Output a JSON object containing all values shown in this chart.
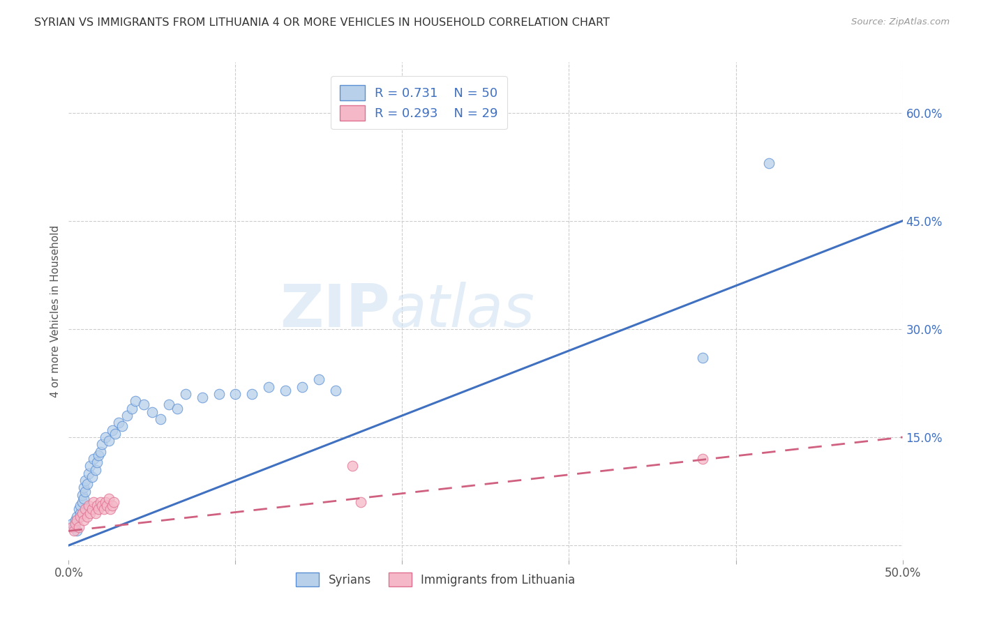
{
  "title": "SYRIAN VS IMMIGRANTS FROM LITHUANIA 4 OR MORE VEHICLES IN HOUSEHOLD CORRELATION CHART",
  "source": "Source: ZipAtlas.com",
  "ylabel": "4 or more Vehicles in Household",
  "xlim": [
    0.0,
    0.5
  ],
  "ylim": [
    -0.02,
    0.67
  ],
  "xtick_positions": [
    0.0,
    0.1,
    0.2,
    0.3,
    0.4,
    0.5
  ],
  "xtick_labels": [
    "0.0%",
    "",
    "",
    "",
    "",
    "50.0%"
  ],
  "ytick_positions": [
    0.0,
    0.15,
    0.3,
    0.45,
    0.6
  ],
  "ytick_labels": [
    "",
    "15.0%",
    "30.0%",
    "45.0%",
    "60.0%"
  ],
  "blue_fill": "#b8d0ea",
  "blue_edge": "#5b8fd4",
  "pink_fill": "#f4b8c8",
  "pink_edge": "#e07090",
  "blue_line": "#4070c0",
  "pink_line": "#d06080",
  "grid_color": "#cccccc",
  "bg_color": "#ffffff",
  "legend_r1": "R = 0.731",
  "legend_n1": "N = 50",
  "legend_r2": "R = 0.293",
  "legend_n2": "N = 29",
  "legend_text_color": "#4070c0",
  "title_color": "#333333",
  "source_color": "#999999",
  "axis_label_color": "#555555",
  "tick_label_color_right": "#4070c0",
  "syrians_x": [
    0.002,
    0.003,
    0.004,
    0.005,
    0.005,
    0.006,
    0.007,
    0.007,
    0.008,
    0.008,
    0.009,
    0.009,
    0.01,
    0.01,
    0.011,
    0.012,
    0.013,
    0.014,
    0.015,
    0.016,
    0.017,
    0.018,
    0.019,
    0.02,
    0.022,
    0.024,
    0.026,
    0.028,
    0.03,
    0.032,
    0.035,
    0.038,
    0.04,
    0.045,
    0.05,
    0.055,
    0.06,
    0.065,
    0.07,
    0.08,
    0.09,
    0.1,
    0.11,
    0.12,
    0.13,
    0.14,
    0.15,
    0.16,
    0.38,
    0.42
  ],
  "syrians_y": [
    0.03,
    0.025,
    0.035,
    0.04,
    0.02,
    0.05,
    0.045,
    0.055,
    0.06,
    0.07,
    0.08,
    0.065,
    0.09,
    0.075,
    0.085,
    0.1,
    0.11,
    0.095,
    0.12,
    0.105,
    0.115,
    0.125,
    0.13,
    0.14,
    0.15,
    0.145,
    0.16,
    0.155,
    0.17,
    0.165,
    0.18,
    0.19,
    0.2,
    0.195,
    0.185,
    0.175,
    0.195,
    0.19,
    0.21,
    0.205,
    0.21,
    0.21,
    0.21,
    0.22,
    0.215,
    0.22,
    0.23,
    0.215,
    0.26,
    0.53
  ],
  "lithuania_x": [
    0.002,
    0.003,
    0.004,
    0.005,
    0.006,
    0.007,
    0.008,
    0.009,
    0.01,
    0.011,
    0.012,
    0.013,
    0.014,
    0.015,
    0.016,
    0.017,
    0.018,
    0.019,
    0.02,
    0.021,
    0.022,
    0.023,
    0.024,
    0.025,
    0.026,
    0.027,
    0.17,
    0.175,
    0.38
  ],
  "lithuania_y": [
    0.025,
    0.02,
    0.03,
    0.035,
    0.025,
    0.04,
    0.045,
    0.035,
    0.05,
    0.04,
    0.055,
    0.045,
    0.05,
    0.06,
    0.045,
    0.055,
    0.05,
    0.06,
    0.055,
    0.05,
    0.06,
    0.055,
    0.065,
    0.05,
    0.055,
    0.06,
    0.11,
    0.06,
    0.12
  ],
  "blue_line_x0": 0.0,
  "blue_line_y0": 0.0,
  "blue_line_x1": 0.5,
  "blue_line_y1": 0.45,
  "pink_line_x0": 0.0,
  "pink_line_y0": 0.02,
  "pink_line_x1": 0.5,
  "pink_line_y1": 0.15
}
